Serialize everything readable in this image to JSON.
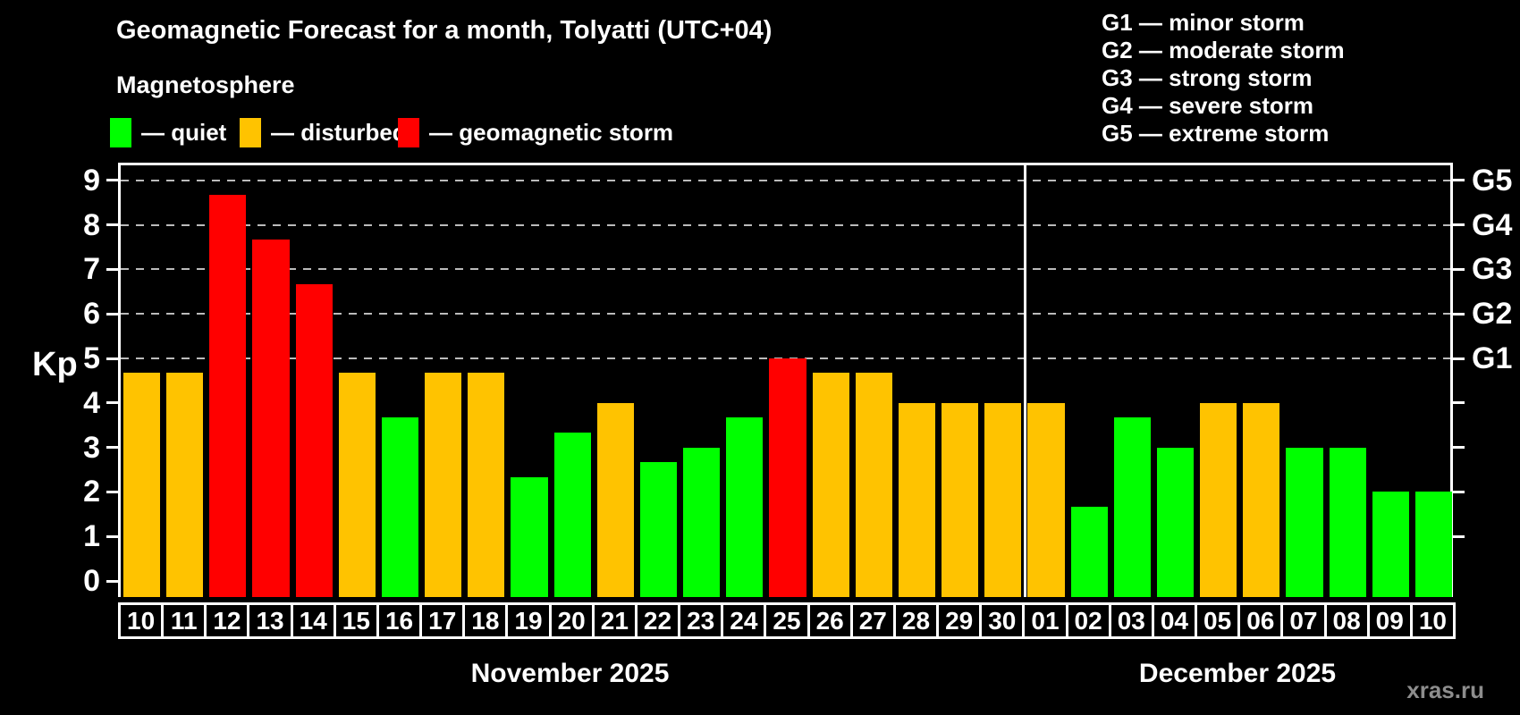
{
  "header": {
    "title": "Geomagnetic Forecast for a month, Tolyatti (UTC+04)",
    "subtitle": "Magnetosphere"
  },
  "legend": {
    "items": [
      {
        "key": "quiet",
        "label": "— quiet",
        "color": "#00ff00"
      },
      {
        "key": "disturbed",
        "label": "— disturbed",
        "color": "#ffc300"
      },
      {
        "key": "storm",
        "label": "— geomagnetic storm",
        "color": "#ff0000"
      }
    ]
  },
  "storm_scale": {
    "items": [
      {
        "label": "G1 — minor storm"
      },
      {
        "label": "G2 — moderate storm"
      },
      {
        "label": "G3 — strong storm"
      },
      {
        "label": "G4 — severe storm"
      },
      {
        "label": "G5 — extreme storm"
      }
    ]
  },
  "chart_data": {
    "type": "bar",
    "title": "Geomagnetic Forecast for a month, Tolyatti (UTC+04)",
    "ylabel": "Kp",
    "ylim": [
      0,
      9.4
    ],
    "y_ticks": [
      0,
      1,
      2,
      3,
      4,
      5,
      6,
      7,
      8,
      9
    ],
    "grid": {
      "levels": [
        5,
        6,
        7,
        8,
        9
      ],
      "style": "dashed"
    },
    "right_axis_labels": [
      {
        "kp": 5,
        "label": "G1"
      },
      {
        "kp": 6,
        "label": "G2"
      },
      {
        "kp": 7,
        "label": "G3"
      },
      {
        "kp": 8,
        "label": "G4"
      },
      {
        "kp": 9,
        "label": "G5"
      }
    ],
    "months": [
      {
        "label": "November 2025",
        "start_index": 0,
        "days": 21
      },
      {
        "label": "December 2025",
        "start_index": 21,
        "days": 10
      }
    ],
    "categories": [
      "10",
      "11",
      "12",
      "13",
      "14",
      "15",
      "16",
      "17",
      "18",
      "19",
      "20",
      "21",
      "22",
      "23",
      "24",
      "25",
      "26",
      "27",
      "28",
      "29",
      "30",
      "01",
      "02",
      "03",
      "04",
      "05",
      "06",
      "07",
      "08",
      "09",
      "10"
    ],
    "values": [
      4.67,
      4.67,
      8.67,
      7.67,
      6.67,
      4.67,
      3.67,
      4.67,
      4.67,
      2.33,
      3.33,
      4.0,
      2.67,
      3.0,
      3.67,
      5.0,
      4.67,
      4.67,
      4.0,
      4.0,
      4.0,
      4.0,
      1.67,
      3.67,
      3.0,
      4.0,
      4.0,
      3.0,
      3.0,
      2.0,
      2.0
    ],
    "statuses": [
      "disturbed",
      "disturbed",
      "storm",
      "storm",
      "storm",
      "disturbed",
      "quiet",
      "disturbed",
      "disturbed",
      "quiet",
      "quiet",
      "disturbed",
      "quiet",
      "quiet",
      "quiet",
      "storm",
      "disturbed",
      "disturbed",
      "disturbed",
      "disturbed",
      "disturbed",
      "disturbed",
      "quiet",
      "quiet",
      "quiet",
      "disturbed",
      "disturbed",
      "quiet",
      "quiet",
      "quiet",
      "quiet"
    ],
    "status_colors": {
      "quiet": "#00ff00",
      "disturbed": "#ffc300",
      "storm": "#ff0000"
    }
  },
  "watermark": "xras.ru"
}
